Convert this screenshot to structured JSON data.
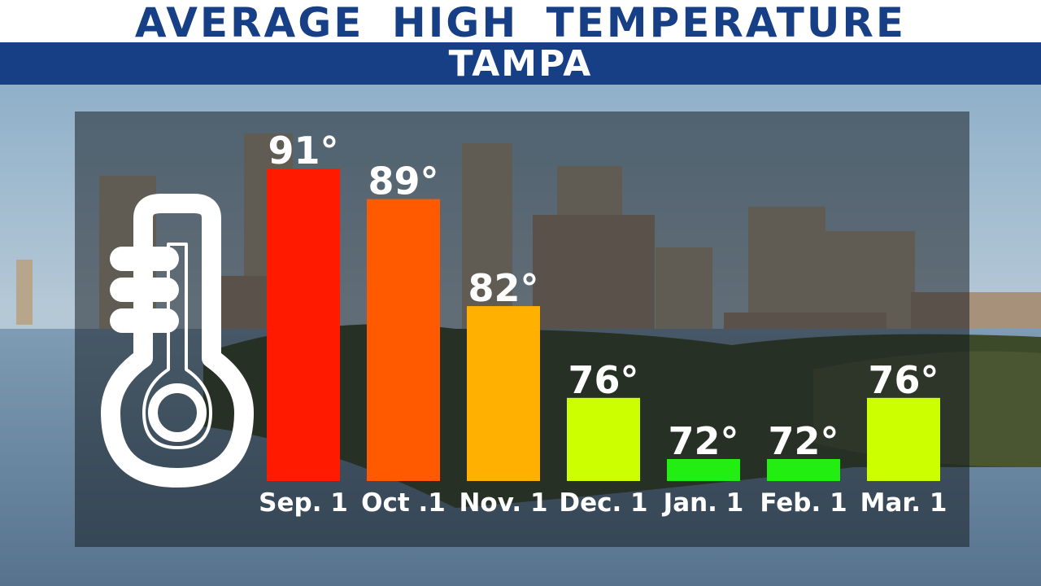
{
  "header": {
    "title": "AVERAGE HIGH TEMPERATURE",
    "subtitle": "TAMPA"
  },
  "colors": {
    "brand_blue": "#173f86",
    "bar_red": "#ff1a00",
    "bar_orange": "#ff5a00",
    "bar_amber": "#ffb000",
    "bar_yellow_green": "#ccff00",
    "bar_green": "#22ee11"
  },
  "icons": [
    "thermometer-icon"
  ],
  "chart_data": {
    "type": "bar",
    "title": "AVERAGE HIGH TEMPERATURE",
    "subtitle": "TAMPA",
    "xlabel": "",
    "ylabel": "",
    "categories": [
      "Sep. 1",
      "Oct .1",
      "Nov. 1",
      "Dec. 1",
      "Jan. 1",
      "Feb. 1",
      "Mar. 1"
    ],
    "values": [
      91,
      89,
      82,
      76,
      72,
      72,
      76
    ],
    "value_labels": [
      "91°",
      "89°",
      "82°",
      "76°",
      "72°",
      "72°",
      "76°"
    ],
    "bar_colors": [
      "#ff1a00",
      "#ff5a00",
      "#ffb000",
      "#ccff00",
      "#22ee11",
      "#22ee11",
      "#ccff00"
    ],
    "unit": "°F",
    "grid": false,
    "legend": "none"
  }
}
